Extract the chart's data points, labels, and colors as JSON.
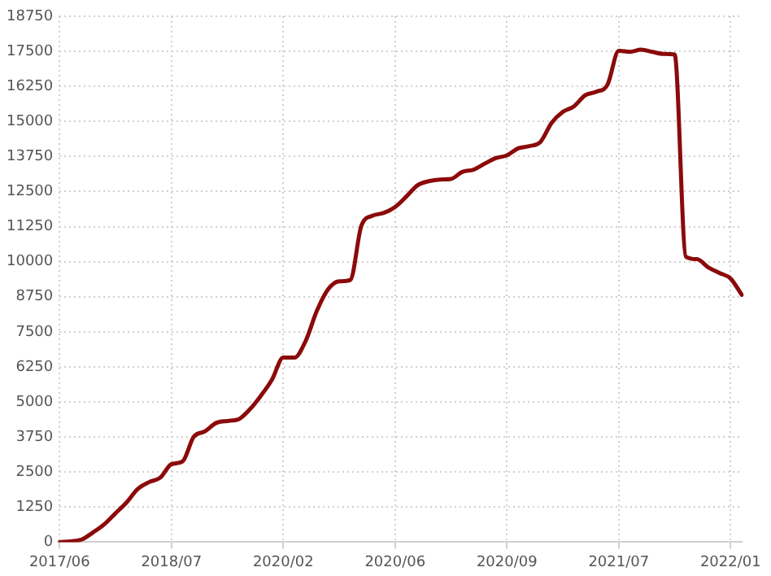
{
  "chart_data": {
    "type": "line",
    "categories": [
      "2017/06",
      null,
      null,
      null,
      null,
      null,
      null,
      null,
      null,
      null,
      "2018/07",
      null,
      null,
      null,
      null,
      null,
      null,
      null,
      null,
      null,
      "2020/02",
      null,
      null,
      null,
      null,
      null,
      null,
      null,
      null,
      null,
      "2020/06",
      null,
      null,
      null,
      null,
      null,
      null,
      null,
      null,
      null,
      "2020/09",
      null,
      null,
      null,
      null,
      null,
      null,
      null,
      null,
      null,
      "2021/07",
      null,
      null,
      null,
      null,
      null,
      null,
      null,
      null,
      null,
      "2022/01",
      null
    ],
    "series": [
      {
        "color": "#8b0a0a",
        "values": [
          0,
          30,
          100,
          350,
          640,
          1030,
          1420,
          1900,
          2140,
          2300,
          2780,
          2880,
          3760,
          3950,
          4250,
          4320,
          4380,
          4730,
          5220,
          5800,
          6580,
          6580,
          7170,
          8240,
          9010,
          9300,
          9350,
          11300,
          11640,
          11740,
          11950,
          12320,
          12720,
          12870,
          12930,
          12950,
          13200,
          13280,
          13490,
          13690,
          13790,
          14040,
          14120,
          14270,
          14950,
          15340,
          15540,
          15930,
          16060,
          16310,
          17520,
          17480,
          17560,
          17480,
          17410,
          17390,
          10180,
          10090,
          9800,
          9600,
          9400,
          8820
        ]
      }
    ],
    "ylim": [
      0,
      18750
    ],
    "yticks": [
      0,
      1250,
      2500,
      3750,
      5000,
      6250,
      7500,
      8750,
      10000,
      11250,
      12500,
      13750,
      15000,
      16250,
      17500,
      18750
    ],
    "grid": true,
    "legend": false,
    "marker": "none",
    "line_style": "solid"
  }
}
